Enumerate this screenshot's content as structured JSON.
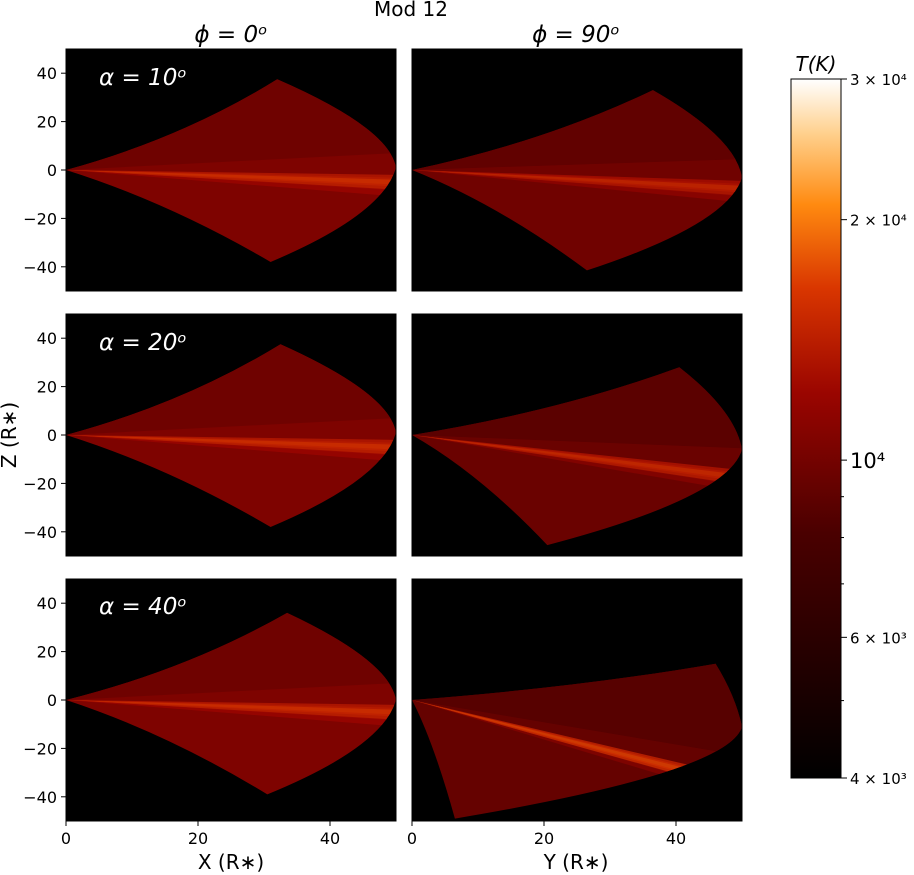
{
  "figure": {
    "title": "Mod 12",
    "xlabel_left": "X (R∗)",
    "xlabel_right": "Y (R∗)",
    "ylabel": "Z (R∗)"
  },
  "column_headers": [
    "ϕ = 0ᵒ",
    "ϕ = 90ᵒ"
  ],
  "row_labels": [
    "α = 10ᵒ",
    "α = 20ᵒ",
    "α = 40ᵒ"
  ],
  "colorbar": {
    "label": "T(K)",
    "scale": "log",
    "range": [
      4000,
      30000
    ],
    "ticks": [
      {
        "value": 30000,
        "label": "3 × 10⁴"
      },
      {
        "value": 20000,
        "label": "2 × 10⁴"
      },
      {
        "value": 10000,
        "label": "10⁴"
      },
      {
        "value": 6000,
        "label": "6 × 10³"
      },
      {
        "value": 4000,
        "label": "4 × 10³"
      }
    ],
    "minor_ticks": [
      5000,
      7000,
      8000,
      9000
    ],
    "colormap": "gist_heat"
  },
  "chart_data": {
    "type": "heatmap",
    "panel_grid": {
      "rows": 3,
      "cols": 2
    },
    "xlim": [
      0,
      50
    ],
    "ylim": [
      -50,
      50
    ],
    "x_ticks": [
      0,
      20,
      40
    ],
    "y_ticks": [
      40,
      20,
      0,
      -20,
      -40
    ],
    "background": "#000000",
    "panels": [
      {
        "row": 0,
        "col": 0,
        "upper_peak": [
          32,
          37.5
        ],
        "lower_peak": [
          31,
          -38
        ],
        "disk_slope": 0.05,
        "band_tilt": -0.1,
        "base_temp": 10500,
        "band_temp": 16000
      },
      {
        "row": 0,
        "col": 1,
        "upper_peak": [
          36.5,
          33
        ],
        "lower_peak": [
          26.5,
          -41.5
        ],
        "disk_slope": -0.15,
        "band_tilt": -0.15,
        "base_temp": 9800,
        "band_temp": 15000
      },
      {
        "row": 1,
        "col": 0,
        "upper_peak": [
          32.5,
          37.5
        ],
        "lower_peak": [
          31,
          -38
        ],
        "disk_slope": 0.05,
        "band_tilt": -0.1,
        "base_temp": 10500,
        "band_temp": 16000
      },
      {
        "row": 1,
        "col": 1,
        "upper_peak": [
          40.5,
          28
        ],
        "lower_peak": [
          20.5,
          -45.5
        ],
        "disk_slope": -0.3,
        "band_tilt": -0.35,
        "base_temp": 9500,
        "band_temp": 15500
      },
      {
        "row": 2,
        "col": 0,
        "upper_peak": [
          33.5,
          36
        ],
        "lower_peak": [
          30.5,
          -39
        ],
        "disk_slope": 0.0,
        "band_tilt": -0.1,
        "base_temp": 10500,
        "band_temp": 16000
      },
      {
        "row": 2,
        "col": 1,
        "upper_peak": [
          46,
          15
        ],
        "lower_peak": [
          6.5,
          -49
        ],
        "disk_slope": -0.55,
        "band_tilt": -0.7,
        "base_temp": 9300,
        "band_temp": 17000
      }
    ]
  }
}
